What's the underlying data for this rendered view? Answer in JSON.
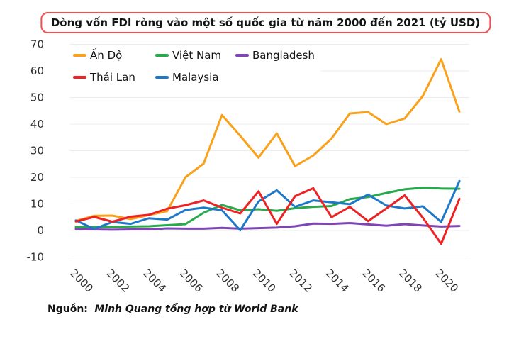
{
  "title_box": {
    "title": "Dòng vốn FDI ròng vào một số quốc gia từ năm 2000 đến 2021 (tỷ USD)"
  },
  "source": {
    "label": "Nguồn:",
    "text": "Minh Quang tổng hợp từ World Bank"
  },
  "colors": {
    "title_border": "#F0504E",
    "grid": "#ECECEC",
    "axis_text": "#303030",
    "background": "#FFFFFF"
  },
  "chart_data": {
    "type": "line",
    "title": "Dòng vốn FDI ròng vào một số quốc gia từ năm 2000 đến 2021 (tỷ USD)",
    "unit": "tỷ USD",
    "x": [
      2000,
      2001,
      2002,
      2003,
      2004,
      2005,
      2006,
      2007,
      2008,
      2009,
      2010,
      2011,
      2012,
      2013,
      2014,
      2015,
      2016,
      2017,
      2018,
      2019,
      2020,
      2021
    ],
    "x_ticks": [
      2000,
      2002,
      2004,
      2006,
      2008,
      2010,
      2012,
      2014,
      2016,
      2018,
      2020
    ],
    "y_ticks": [
      70,
      60,
      50,
      40,
      30,
      20,
      10,
      0,
      -10
    ],
    "ylim": [
      -10,
      70
    ],
    "grid": true,
    "legend_position": "top-left",
    "series": [
      {
        "name": "Ấn Độ",
        "color": "#F9A11B",
        "values": [
          3.6,
          5.5,
          5.6,
          4.3,
          5.8,
          7.3,
          20.0,
          25.2,
          43.4,
          35.6,
          27.4,
          36.5,
          24.2,
          28.2,
          34.6,
          44.0,
          44.5,
          40.0,
          42.1,
          50.6,
          64.4,
          44.7
        ]
      },
      {
        "name": "Việt Nam",
        "color": "#28A94C",
        "values": [
          1.3,
          1.3,
          1.4,
          1.5,
          1.6,
          2.0,
          2.4,
          6.7,
          9.6,
          7.6,
          8.0,
          7.4,
          8.4,
          8.9,
          9.2,
          11.8,
          12.6,
          14.1,
          15.5,
          16.1,
          15.8,
          15.7
        ]
      },
      {
        "name": "Bangladesh",
        "color": "#7E45B5",
        "values": [
          0.6,
          0.4,
          0.3,
          0.4,
          0.4,
          0.8,
          0.7,
          0.7,
          1.0,
          0.7,
          0.9,
          1.1,
          1.6,
          2.6,
          2.5,
          2.8,
          2.3,
          1.8,
          2.4,
          1.9,
          1.5,
          1.7
        ]
      },
      {
        "name": "Thái Lan",
        "color": "#ED2224",
        "values": [
          3.4,
          5.1,
          3.3,
          5.2,
          5.9,
          8.2,
          9.5,
          11.3,
          8.6,
          6.4,
          14.7,
          2.5,
          12.9,
          15.9,
          5.0,
          8.9,
          3.5,
          8.3,
          13.2,
          4.8,
          -5.0,
          11.9
        ]
      },
      {
        "name": "Malaysia",
        "color": "#1E78C8",
        "values": [
          3.8,
          0.6,
          3.2,
          2.5,
          4.6,
          4.1,
          7.7,
          8.6,
          7.6,
          0.1,
          10.9,
          15.1,
          8.9,
          11.3,
          10.6,
          9.9,
          13.5,
          9.4,
          8.3,
          9.1,
          3.2,
          18.6
        ]
      }
    ],
    "draw_order": [
      2,
      1,
      0,
      4,
      3
    ]
  }
}
